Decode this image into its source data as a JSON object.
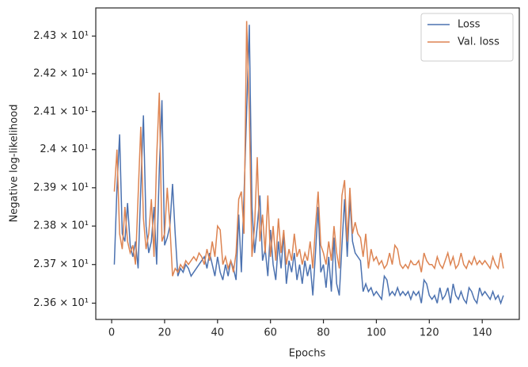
{
  "chart_data": {
    "type": "line",
    "x_label": "Epochs",
    "y_label": "Negative log-likelihood",
    "yscale": "log",
    "grid": false,
    "legend_position": "upper right",
    "x": [
      1,
      2,
      3,
      4,
      5,
      6,
      7,
      8,
      9,
      10,
      11,
      12,
      13,
      14,
      15,
      16,
      17,
      18,
      19,
      20,
      21,
      22,
      23,
      24,
      25,
      26,
      27,
      28,
      29,
      30,
      31,
      32,
      33,
      34,
      35,
      36,
      37,
      38,
      39,
      40,
      41,
      42,
      43,
      44,
      45,
      46,
      47,
      48,
      49,
      50,
      51,
      52,
      53,
      54,
      55,
      56,
      57,
      58,
      59,
      60,
      61,
      62,
      63,
      64,
      65,
      66,
      67,
      68,
      69,
      70,
      71,
      72,
      73,
      74,
      75,
      76,
      77,
      78,
      79,
      80,
      81,
      82,
      83,
      84,
      85,
      86,
      87,
      88,
      89,
      90,
      91,
      92,
      93,
      94,
      95,
      96,
      97,
      98,
      99,
      100,
      101,
      102,
      103,
      104,
      105,
      106,
      107,
      108,
      109,
      110,
      111,
      112,
      113,
      114,
      115,
      116,
      117,
      118,
      119,
      120,
      121,
      122,
      123,
      124,
      125,
      126,
      127,
      128,
      129,
      130,
      131,
      132,
      133,
      134,
      135,
      136,
      137,
      138,
      139,
      140,
      141,
      142,
      143,
      144,
      145,
      146,
      147,
      148
    ],
    "series": [
      {
        "name": "Loss",
        "color": "#4c72b0",
        "values": [
          23.7,
          23.9,
          24.04,
          23.78,
          23.76,
          23.86,
          23.75,
          23.72,
          23.76,
          23.69,
          23.9,
          24.09,
          23.8,
          23.73,
          23.76,
          23.85,
          23.7,
          23.95,
          24.13,
          23.75,
          23.77,
          23.8,
          23.91,
          23.78,
          23.67,
          23.69,
          23.68,
          23.7,
          23.69,
          23.67,
          23.68,
          23.69,
          23.7,
          23.71,
          23.72,
          23.69,
          23.73,
          23.7,
          23.67,
          23.72,
          23.68,
          23.66,
          23.7,
          23.67,
          23.71,
          23.69,
          23.66,
          23.83,
          23.68,
          23.88,
          24.1,
          24.33,
          23.85,
          23.73,
          23.8,
          23.88,
          23.71,
          23.74,
          23.67,
          23.79,
          23.7,
          23.66,
          23.76,
          23.69,
          23.78,
          23.65,
          23.71,
          23.68,
          23.73,
          23.66,
          23.7,
          23.65,
          23.71,
          23.67,
          23.7,
          23.62,
          23.73,
          23.85,
          23.68,
          23.7,
          23.64,
          23.72,
          23.63,
          23.77,
          23.65,
          23.62,
          23.75,
          23.87,
          23.72,
          23.87,
          23.76,
          23.73,
          23.72,
          23.71,
          23.63,
          23.65,
          23.63,
          23.64,
          23.62,
          23.63,
          23.62,
          23.61,
          23.67,
          23.66,
          23.62,
          23.63,
          23.62,
          23.64,
          23.62,
          23.63,
          23.62,
          23.63,
          23.61,
          23.63,
          23.62,
          23.63,
          23.6,
          23.66,
          23.65,
          23.62,
          23.61,
          23.62,
          23.6,
          23.64,
          23.61,
          23.62,
          23.64,
          23.6,
          23.65,
          23.62,
          23.61,
          23.63,
          23.61,
          23.6,
          23.64,
          23.63,
          23.61,
          23.6,
          23.64,
          23.62,
          23.63,
          23.62,
          23.61,
          23.63,
          23.61,
          23.62,
          23.6,
          23.62
        ]
      },
      {
        "name": "Val. loss",
        "color": "#dd8452",
        "values": [
          23.89,
          24.0,
          23.78,
          23.74,
          23.85,
          23.76,
          23.73,
          23.75,
          23.7,
          23.88,
          24.06,
          23.82,
          23.74,
          23.78,
          23.87,
          23.72,
          23.98,
          24.15,
          23.76,
          23.78,
          23.9,
          23.8,
          23.67,
          23.69,
          23.68,
          23.7,
          23.69,
          23.71,
          23.7,
          23.71,
          23.72,
          23.71,
          23.73,
          23.72,
          23.7,
          23.74,
          23.71,
          23.76,
          23.72,
          23.8,
          23.79,
          23.7,
          23.72,
          23.69,
          23.71,
          23.68,
          23.73,
          23.87,
          23.89,
          23.78,
          24.34,
          24.1,
          23.72,
          23.8,
          23.98,
          23.76,
          23.83,
          23.73,
          23.88,
          23.72,
          23.8,
          23.71,
          23.82,
          23.73,
          23.79,
          23.7,
          23.74,
          23.71,
          23.78,
          23.72,
          23.74,
          23.7,
          23.73,
          23.71,
          23.76,
          23.69,
          23.8,
          23.89,
          23.75,
          23.73,
          23.7,
          23.76,
          23.71,
          23.8,
          23.73,
          23.69,
          23.88,
          23.92,
          23.76,
          23.9,
          23.78,
          23.81,
          23.78,
          23.77,
          23.72,
          23.78,
          23.69,
          23.74,
          23.71,
          23.72,
          23.7,
          23.71,
          23.69,
          23.7,
          23.73,
          23.7,
          23.75,
          23.74,
          23.7,
          23.69,
          23.7,
          23.69,
          23.71,
          23.7,
          23.7,
          23.71,
          23.68,
          23.73,
          23.71,
          23.7,
          23.7,
          23.69,
          23.72,
          23.7,
          23.69,
          23.71,
          23.73,
          23.7,
          23.72,
          23.69,
          23.7,
          23.73,
          23.7,
          23.69,
          23.71,
          23.7,
          23.72,
          23.7,
          23.71,
          23.7,
          23.71,
          23.7,
          23.69,
          23.72,
          23.7,
          23.69,
          23.73,
          23.69
        ]
      }
    ],
    "xlim": [
      -6,
      154
    ],
    "xticks": [
      0,
      20,
      40,
      60,
      80,
      100,
      120,
      140
    ],
    "ylim": [
      23.558,
      24.375
    ],
    "yticks": [
      {
        "value": 23.6,
        "label": "2.36 × 10¹"
      },
      {
        "value": 23.7,
        "label": "2.37 × 10¹"
      },
      {
        "value": 23.8,
        "label": "2.38 × 10¹"
      },
      {
        "value": 23.9,
        "label": "2.39 × 10¹"
      },
      {
        "value": 24.0,
        "label": "2.4 × 10¹"
      },
      {
        "value": 24.1,
        "label": "2.41 × 10¹"
      },
      {
        "value": 24.2,
        "label": "2.42 × 10¹"
      },
      {
        "value": 24.3,
        "label": "2.43 × 10¹"
      }
    ]
  }
}
